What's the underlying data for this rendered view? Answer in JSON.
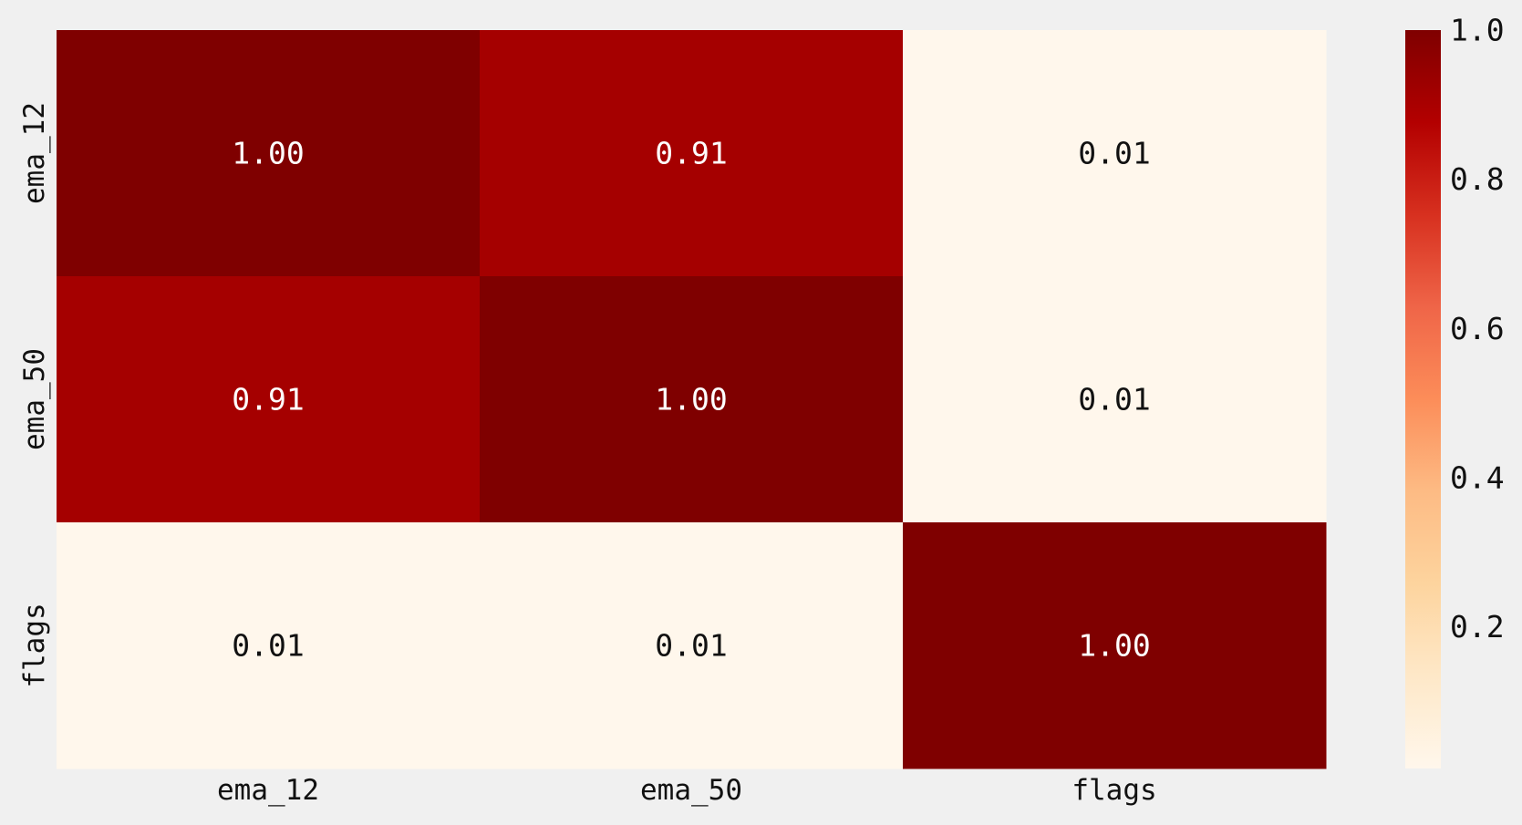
{
  "chart_data": {
    "type": "heatmap",
    "title": "",
    "xlabel": "",
    "ylabel": "",
    "x_categories": [
      "ema_12",
      "ema_50",
      "flags"
    ],
    "y_categories": [
      "ema_12",
      "ema_50",
      "flags"
    ],
    "values": [
      [
        1.0,
        0.91,
        0.01
      ],
      [
        0.91,
        1.0,
        0.01
      ],
      [
        0.01,
        0.01,
        1.0
      ]
    ],
    "cell_labels": [
      [
        "1.00",
        "0.91",
        "0.01"
      ],
      [
        "0.91",
        "1.00",
        "0.01"
      ],
      [
        "0.01",
        "0.01",
        "1.00"
      ]
    ],
    "colormap": "OrRd",
    "vmin": 0.01,
    "vmax": 1.0,
    "colorbar": {
      "placement": "right",
      "ticks": [
        0.2,
        0.4,
        0.6,
        0.8,
        1.0
      ],
      "tick_labels": [
        "0.2",
        "0.4",
        "0.6",
        "0.8",
        "1.0"
      ]
    },
    "colors": {
      "background": "#f0f0f0",
      "max": "#7f0000",
      "high": "#a30000",
      "min": "#fff6eb",
      "text_dark": "#111111",
      "text_light": "#ffffff"
    }
  }
}
